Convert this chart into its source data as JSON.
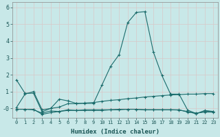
{
  "xlabel": "Humidex (Indice chaleur)",
  "background_color": "#c8e8e8",
  "grid_color": "#d8c8c8",
  "line_color": "#1a6b6b",
  "xlim": [
    -0.5,
    23.5
  ],
  "ylim": [
    -0.55,
    6.3
  ],
  "yticks": [
    0,
    1,
    2,
    3,
    4,
    5,
    6
  ],
  "ytick_labels": [
    "-0",
    "1",
    "2",
    "3",
    "4",
    "5",
    "6"
  ],
  "xticks": [
    0,
    1,
    2,
    3,
    4,
    5,
    6,
    7,
    8,
    9,
    10,
    11,
    12,
    13,
    14,
    15,
    16,
    17,
    18,
    19,
    20,
    21,
    22,
    23
  ],
  "series": [
    {
      "x": [
        0,
        1,
        2,
        3,
        4,
        5,
        6,
        7,
        8,
        9,
        10,
        11,
        12,
        13,
        14,
        15,
        16,
        17,
        18,
        19,
        20,
        21,
        22,
        23
      ],
      "y": [
        1.7,
        0.9,
        0.9,
        -0.2,
        0.0,
        0.55,
        0.45,
        0.3,
        0.3,
        0.3,
        1.4,
        2.5,
        3.2,
        5.1,
        5.7,
        5.75,
        3.35,
        1.95,
        0.85,
        0.85,
        -0.1,
        -0.3,
        -0.15,
        -0.2
      ]
    },
    {
      "x": [
        0,
        1,
        2,
        3,
        4,
        5,
        6,
        7,
        8,
        9,
        10,
        11,
        12,
        13,
        14,
        15,
        16,
        17,
        18,
        19,
        20,
        21,
        22,
        23
      ],
      "y": [
        0.05,
        0.85,
        1.0,
        -0.08,
        0.0,
        0.08,
        0.28,
        0.28,
        0.32,
        0.35,
        0.42,
        0.48,
        0.52,
        0.58,
        0.62,
        0.68,
        0.72,
        0.76,
        0.8,
        0.82,
        0.85,
        0.85,
        0.88,
        0.88
      ]
    },
    {
      "x": [
        0,
        1,
        2,
        3,
        4,
        5,
        6,
        7,
        8,
        9,
        10,
        11,
        12,
        13,
        14,
        15,
        16,
        17,
        18,
        19,
        20,
        21,
        22,
        23
      ],
      "y": [
        -0.05,
        -0.05,
        -0.08,
        -0.28,
        -0.15,
        -0.18,
        -0.08,
        -0.12,
        -0.12,
        -0.12,
        -0.12,
        -0.08,
        -0.05,
        -0.05,
        -0.05,
        -0.08,
        -0.08,
        -0.08,
        -0.08,
        -0.1,
        -0.18,
        -0.32,
        -0.12,
        -0.18
      ]
    },
    {
      "x": [
        0,
        1,
        2,
        3,
        4,
        5,
        6,
        7,
        8,
        9,
        10,
        11,
        12,
        13,
        14,
        15,
        16,
        17,
        18,
        19,
        20,
        21,
        22,
        23
      ],
      "y": [
        -0.05,
        -0.05,
        -0.05,
        -0.35,
        -0.25,
        -0.18,
        -0.12,
        -0.12,
        -0.08,
        -0.08,
        -0.08,
        -0.08,
        -0.08,
        -0.05,
        -0.05,
        -0.08,
        -0.08,
        -0.08,
        -0.08,
        -0.08,
        -0.22,
        -0.28,
        -0.22,
        -0.22
      ]
    }
  ]
}
